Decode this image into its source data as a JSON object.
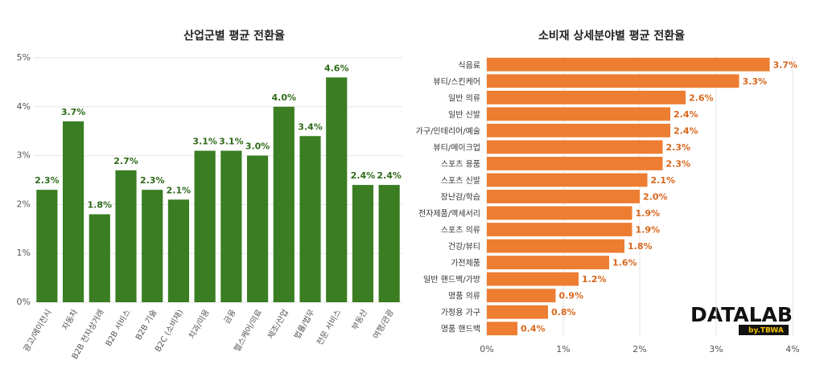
{
  "chart_data": [
    {
      "type": "bar",
      "orientation": "vertical",
      "title": "산업군별 평균 전환율",
      "categories": [
        "광고/에이전시",
        "자동차",
        "B2B 전자상거래",
        "B2B 서비스",
        "B2B 기술",
        "B2C (소비재)",
        "치과/미용",
        "금융",
        "헬스케어/의료",
        "제조/산업",
        "법률/법무",
        "전문 서비스",
        "부동산",
        "여행/관광"
      ],
      "values": [
        2.3,
        3.7,
        1.8,
        2.7,
        2.3,
        2.1,
        3.1,
        3.1,
        3.0,
        4.0,
        3.4,
        4.6,
        2.4,
        2.4
      ],
      "value_labels": [
        "2.3%",
        "3.7%",
        "1.8%",
        "2.7%",
        "2.3%",
        "2.1%",
        "3.1%",
        "3.1%",
        "3.0%",
        "4.0%",
        "3.4%",
        "4.6%",
        "2.4%",
        "2.4%"
      ],
      "color": "#3a7d22",
      "label_color": "#2f6a1a",
      "ylim": [
        0,
        5
      ],
      "yticks": [
        {
          "value": 0,
          "label": "0%"
        },
        {
          "value": 1,
          "label": "1%"
        },
        {
          "value": 2,
          "label": "2%"
        },
        {
          "value": 3,
          "label": "3%"
        },
        {
          "value": 4,
          "label": "4%"
        },
        {
          "value": 5,
          "label": "5%"
        }
      ],
      "grid": true
    },
    {
      "type": "bar",
      "orientation": "horizontal",
      "title": "소비재 상세분야별 평균 전환율",
      "categories": [
        "식음료",
        "뷰티/스킨케어",
        "일반 의류",
        "일반 신발",
        "가구/인테리어/예술",
        "뷰티/메이크업",
        "스포츠 용품",
        "스포츠 신발",
        "장난감/학습",
        "전자제품/액세서리",
        "스포츠 의류",
        "건강/뷰티",
        "가전제품",
        "일반 핸드백/가방",
        "명품 의류",
        "가정용 가구",
        "명품 핸드백"
      ],
      "values": [
        3.7,
        3.3,
        2.6,
        2.4,
        2.4,
        2.3,
        2.3,
        2.1,
        2.0,
        1.9,
        1.9,
        1.8,
        1.6,
        1.2,
        0.9,
        0.8,
        0.4
      ],
      "value_labels": [
        "3.7%",
        "3.3%",
        "2.6%",
        "2.4%",
        "2.4%",
        "2.3%",
        "2.3%",
        "2.1%",
        "2.0%",
        "1.9%",
        "1.9%",
        "1.8%",
        "1.6%",
        "1.2%",
        "0.9%",
        "0.8%",
        "0.4%"
      ],
      "color": "#ed7d31",
      "label_color": "#d9661c",
      "xlim": [
        0,
        4
      ],
      "xticks": [
        {
          "value": 0,
          "label": "0%"
        },
        {
          "value": 1,
          "label": "1%"
        },
        {
          "value": 2,
          "label": "2%"
        },
        {
          "value": 3,
          "label": "3%"
        },
        {
          "value": 4,
          "label": "4%"
        }
      ],
      "grid": true
    }
  ],
  "logo": {
    "text": "DATALAB",
    "sub": "by.TBWA"
  }
}
